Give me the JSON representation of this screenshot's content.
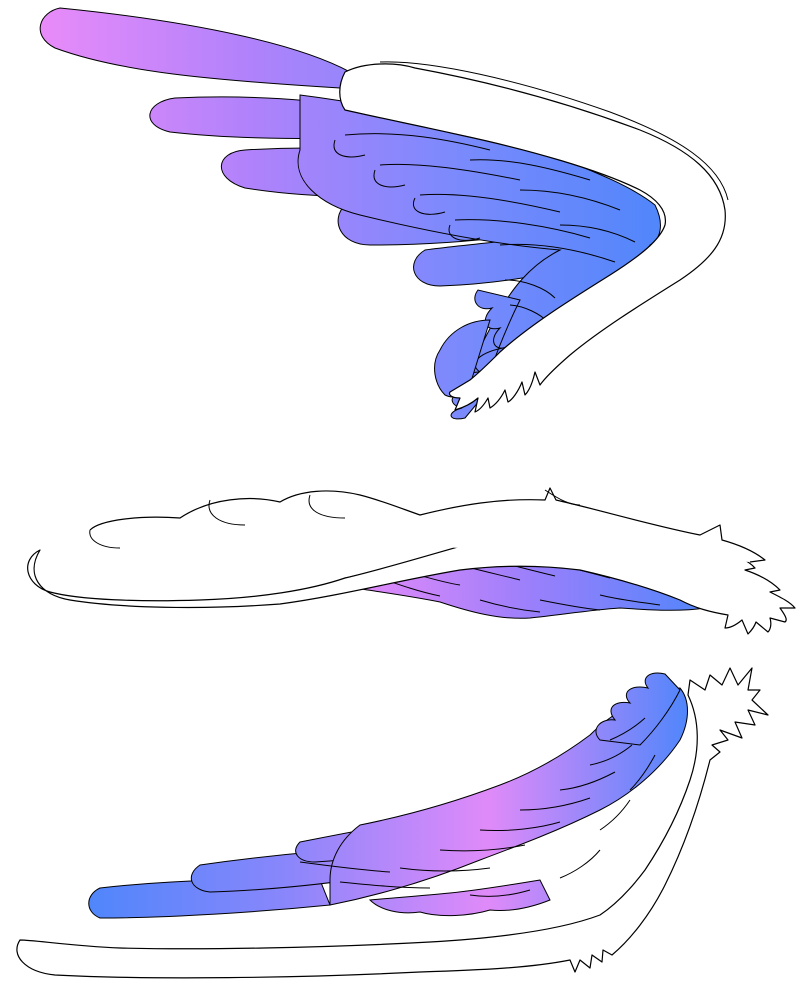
{
  "illustration": {
    "background": "#ffffff",
    "outline": "#000000",
    "wings": [
      {
        "id": "wing-top",
        "pose": "raised",
        "gradient": [
          "#e98bf9",
          "#b082fb",
          "#7a8afc",
          "#4f86fb"
        ]
      },
      {
        "id": "wing-middle",
        "pose": "folded-horizontal",
        "gradient": [
          "#e98bf9",
          "#9b7ffb",
          "#4f86fb"
        ]
      },
      {
        "id": "wing-bottom",
        "pose": "lowered",
        "gradient": [
          "#4f86fb",
          "#8a86fb",
          "#e08af9",
          "#4f86fb"
        ]
      }
    ]
  }
}
